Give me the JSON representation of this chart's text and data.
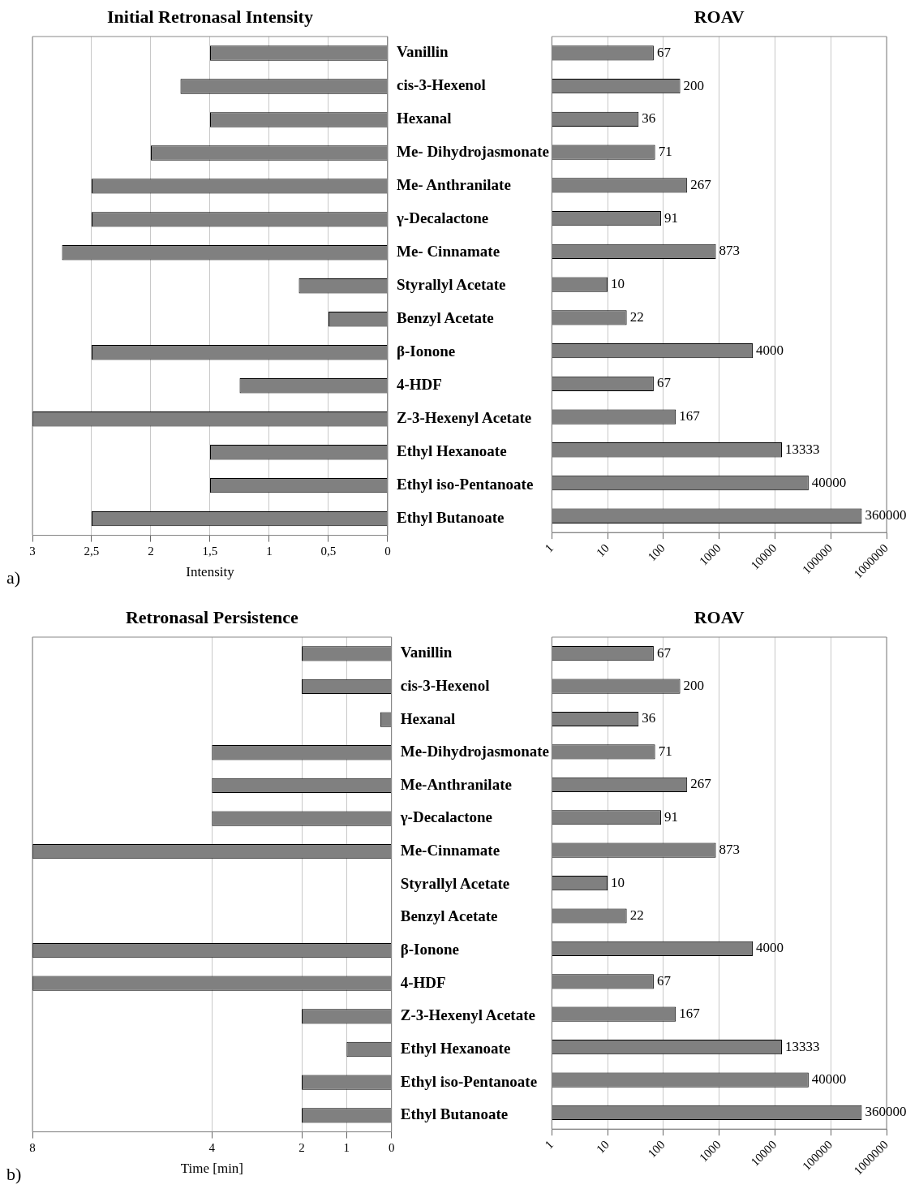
{
  "chart_data": [
    {
      "type": "bar",
      "orientation": "horizontal",
      "title": "Initial Retronasal Intensity",
      "xlabel": "Intensity",
      "annotations": [
        "a)"
      ],
      "categories": [
        "Vanillin",
        "cis-3-Hexenol",
        "Hexanal",
        "Me- Dihydrojasmonate",
        "Me- Anthranilate",
        "γ-Decalactone",
        "Me- Cinnamate",
        "Styrallyl Acetate",
        "Benzyl Acetate",
        "β-Ionone",
        "4-HDF",
        "Z-3-Hexenyl Acetate",
        "Ethyl Hexanoate",
        "Ethyl iso-Pentanoate",
        "Ethyl Butanoate"
      ],
      "values": [
        1.5,
        1.75,
        1.5,
        2,
        2.5,
        2.5,
        2.75,
        0.75,
        0.5,
        2.5,
        1.25,
        3,
        1.5,
        1.5,
        2.5
      ],
      "color": "#808080",
      "xlim": [
        3,
        0
      ],
      "xticks": [
        3,
        {
          "value": 2.5,
          "label": "2,5"
        },
        2,
        {
          "value": 1.5,
          "label": "1,5"
        },
        1,
        {
          "value": 0.5,
          "label": "0,5"
        },
        0
      ],
      "grid": "x"
    },
    {
      "type": "bar",
      "orientation": "horizontal",
      "title": "ROAV",
      "categories": [
        null,
        null,
        null,
        null,
        null,
        null,
        null,
        null,
        null,
        null,
        null,
        null,
        null,
        null,
        null
      ],
      "values": [
        67,
        200,
        36,
        71,
        267,
        91,
        873,
        10,
        22,
        4000,
        67,
        167,
        13333,
        40000,
        360000
      ],
      "color": "#808080",
      "log": "x",
      "xlim": [
        1,
        1000000
      ],
      "xticks": [
        1,
        10,
        100,
        1000,
        10000,
        100000,
        1000000
      ],
      "grid": "x",
      "data_labels": true,
      "tick_labels": "x"
    },
    {
      "type": "bar",
      "orientation": "horizontal",
      "title": "Retronasal Persistence",
      "xlabel": "Time [min]",
      "annotations": [
        "b)"
      ],
      "categories": [
        "Vanillin",
        "cis-3-Hexenol",
        "Hexanal",
        "Me-Dihydrojasmonate",
        "Me-Anthranilate",
        "γ-Decalactone",
        "Me-Cinnamate",
        "Styrallyl Acetate",
        "Benzyl Acetate",
        "β-Ionone",
        "4-HDF",
        "Z-3-Hexenyl Acetate",
        "Ethyl Hexanoate",
        "Ethyl iso-Pentanoate",
        "Ethyl Butanoate"
      ],
      "values": [
        2,
        2,
        0.25,
        4,
        4,
        4,
        8,
        0,
        0,
        8,
        8,
        2,
        1,
        2,
        2
      ],
      "color": "#808080",
      "xlim": [
        8,
        0
      ],
      "xticks": [
        8,
        4,
        2,
        1,
        0
      ],
      "grid": "x"
    },
    {
      "type": "bar",
      "orientation": "horizontal",
      "title": "ROAV",
      "categories": [
        null,
        null,
        null,
        null,
        null,
        null,
        null,
        null,
        null,
        null,
        null,
        null,
        null,
        null,
        null
      ],
      "values": [
        67,
        200,
        36,
        71,
        267,
        91,
        873,
        10,
        22,
        4000,
        67,
        167,
        13333,
        40000,
        360000
      ],
      "color": "#808080",
      "log": "x",
      "xlim": [
        1,
        1000000
      ],
      "xticks": [
        1,
        10,
        100,
        1000,
        10000,
        100000,
        1000000
      ],
      "grid": "x",
      "data_labels": true,
      "tick_labels": "x"
    }
  ]
}
